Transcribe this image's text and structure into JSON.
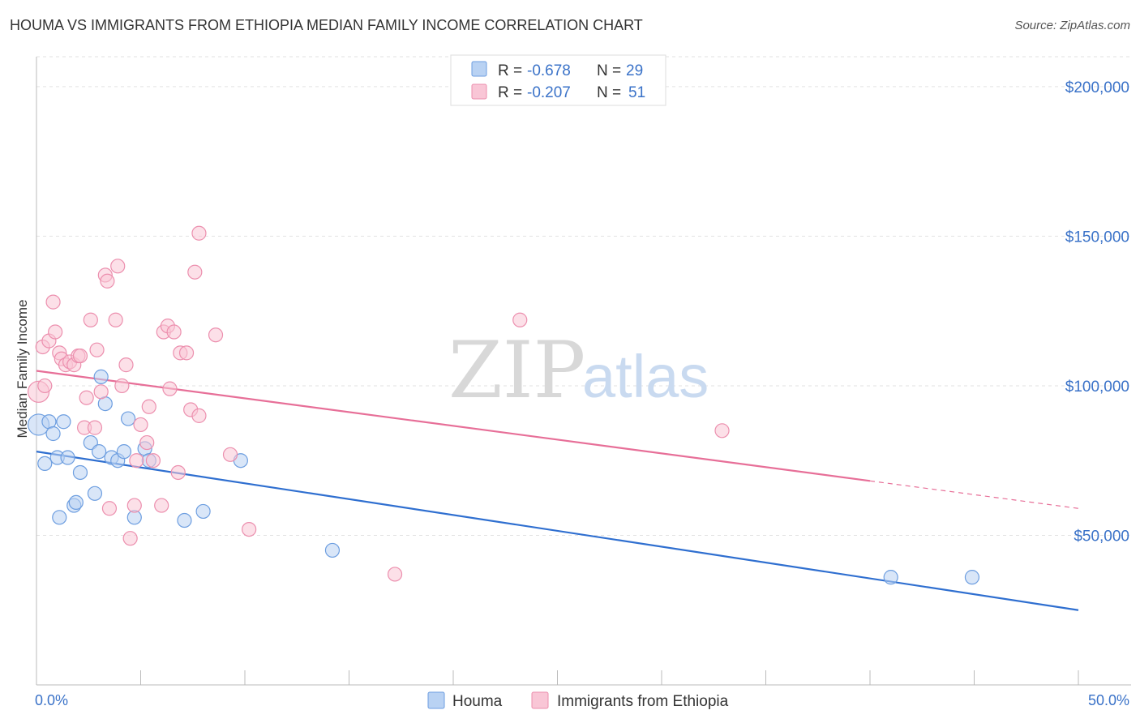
{
  "title": "HOUMA VS IMMIGRANTS FROM ETHIOPIA MEDIAN FAMILY INCOME CORRELATION CHART",
  "source": "Source: ZipAtlas.com",
  "watermark": {
    "zip": "ZIP",
    "atlas": "atlas"
  },
  "colors": {
    "houma_fill": "#b9d2f3",
    "houma_stroke": "#6d9ee0",
    "houma_line": "#2f6fd0",
    "ethiopia_fill": "#f9c6d6",
    "ethiopia_stroke": "#ec8fae",
    "ethiopia_line": "#e76f98",
    "tick_label": "#3a72c8"
  },
  "stats": {
    "houma": {
      "r_label": "R =",
      "r_value": "-0.678",
      "n_label": "N =",
      "n_value": "29"
    },
    "ethiopia": {
      "r_label": "R =",
      "r_value": "-0.207",
      "n_label": "N =",
      "n_value": "51"
    }
  },
  "chart_data": {
    "type": "scatter",
    "title": "HOUMA VS IMMIGRANTS FROM ETHIOPIA MEDIAN FAMILY INCOME CORRELATION CHART",
    "xlabel": "",
    "ylabel": "Median Family Income",
    "xlim": [
      0,
      50
    ],
    "ylim": [
      0,
      210000
    ],
    "x_tick_labels": [
      "0.0%",
      "50.0%"
    ],
    "y_ticks": [
      50000,
      100000,
      150000,
      200000
    ],
    "y_tick_labels": [
      "$50,000",
      "$100,000",
      "$150,000",
      "$200,000"
    ],
    "grid": true,
    "legend_position": "bottom-center",
    "series": [
      {
        "name": "Houma",
        "points": [
          [
            0.1,
            87000
          ],
          [
            0.4,
            74000
          ],
          [
            0.6,
            88000
          ],
          [
            0.8,
            84000
          ],
          [
            1.0,
            76000
          ],
          [
            1.1,
            56000
          ],
          [
            1.3,
            88000
          ],
          [
            1.5,
            76000
          ],
          [
            1.8,
            60000
          ],
          [
            1.9,
            61000
          ],
          [
            2.1,
            71000
          ],
          [
            2.6,
            81000
          ],
          [
            2.8,
            64000
          ],
          [
            3.0,
            78000
          ],
          [
            3.1,
            103000
          ],
          [
            3.3,
            94000
          ],
          [
            3.6,
            76000
          ],
          [
            3.9,
            75000
          ],
          [
            4.2,
            78000
          ],
          [
            4.4,
            89000
          ],
          [
            4.7,
            56000
          ],
          [
            5.2,
            79000
          ],
          [
            5.4,
            75000
          ],
          [
            7.1,
            55000
          ],
          [
            8.0,
            58000
          ],
          [
            9.8,
            75000
          ],
          [
            14.2,
            45000
          ],
          [
            41.0,
            36000
          ],
          [
            44.9,
            36000
          ]
        ],
        "trend": {
          "x": [
            0,
            50
          ],
          "y": [
            78000,
            25000
          ],
          "solid_to": 50
        }
      },
      {
        "name": "Immigrants from Ethiopia",
        "points": [
          [
            0.1,
            98000
          ],
          [
            0.3,
            113000
          ],
          [
            0.4,
            100000
          ],
          [
            0.6,
            115000
          ],
          [
            0.8,
            128000
          ],
          [
            0.9,
            118000
          ],
          [
            1.1,
            111000
          ],
          [
            1.2,
            109000
          ],
          [
            1.4,
            107000
          ],
          [
            1.6,
            108000
          ],
          [
            1.8,
            107000
          ],
          [
            2.0,
            110000
          ],
          [
            2.1,
            110000
          ],
          [
            2.3,
            86000
          ],
          [
            2.4,
            96000
          ],
          [
            2.6,
            122000
          ],
          [
            2.8,
            86000
          ],
          [
            2.9,
            112000
          ],
          [
            3.1,
            98000
          ],
          [
            3.3,
            137000
          ],
          [
            3.4,
            135000
          ],
          [
            3.5,
            59000
          ],
          [
            3.8,
            122000
          ],
          [
            3.9,
            140000
          ],
          [
            4.1,
            100000
          ],
          [
            4.3,
            107000
          ],
          [
            4.5,
            49000
          ],
          [
            4.7,
            60000
          ],
          [
            4.8,
            75000
          ],
          [
            5.0,
            87000
          ],
          [
            5.3,
            81000
          ],
          [
            5.4,
            93000
          ],
          [
            5.6,
            75000
          ],
          [
            6.0,
            60000
          ],
          [
            6.1,
            118000
          ],
          [
            6.3,
            120000
          ],
          [
            6.4,
            99000
          ],
          [
            6.6,
            118000
          ],
          [
            6.8,
            71000
          ],
          [
            6.9,
            111000
          ],
          [
            7.2,
            111000
          ],
          [
            7.4,
            92000
          ],
          [
            7.6,
            138000
          ],
          [
            7.8,
            90000
          ],
          [
            7.8,
            151000
          ],
          [
            8.6,
            117000
          ],
          [
            9.3,
            77000
          ],
          [
            10.2,
            52000
          ],
          [
            17.2,
            37000
          ],
          [
            23.2,
            122000
          ],
          [
            32.9,
            85000
          ]
        ],
        "trend": {
          "x": [
            0,
            50
          ],
          "y": [
            105000,
            59000
          ],
          "solid_to": 40
        }
      }
    ]
  }
}
